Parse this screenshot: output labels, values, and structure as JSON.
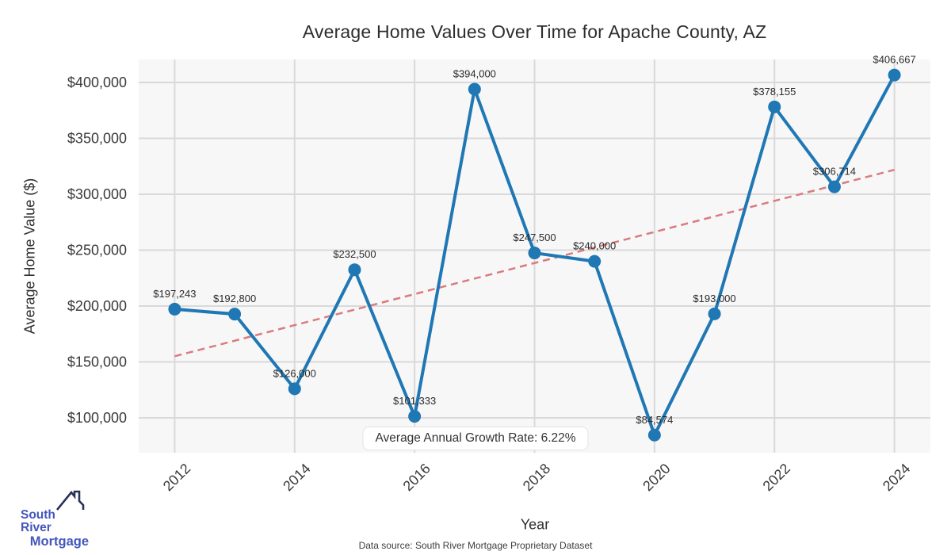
{
  "chart_data": {
    "type": "line",
    "title": "Average Home Values Over Time for Apache County, AZ",
    "xlabel": "Year",
    "ylabel": "Average Home Value ($)",
    "x": [
      2012,
      2013,
      2014,
      2015,
      2016,
      2017,
      2018,
      2019,
      2020,
      2021,
      2022,
      2023,
      2024
    ],
    "values": [
      197243,
      192800,
      126000,
      232500,
      101333,
      394000,
      247500,
      240000,
      84574,
      193000,
      378155,
      306714,
      406667
    ],
    "point_labels": [
      "$197,243",
      "$192,800",
      "$126,000",
      "$232,500",
      "$101,333",
      "$394,000",
      "$247,500",
      "$240,000",
      "$84,574",
      "$193,000",
      "$378,155",
      "$306,714",
      "$406,667"
    ],
    "x_tick_values": [
      2012,
      2014,
      2016,
      2018,
      2020,
      2022,
      2024
    ],
    "x_tick_labels": [
      "2012",
      "2014",
      "2016",
      "2018",
      "2020",
      "2022",
      "2024"
    ],
    "y_tick_values": [
      100000,
      150000,
      200000,
      250000,
      300000,
      350000,
      400000
    ],
    "y_tick_labels": [
      "$100,000",
      "$150,000",
      "$200,000",
      "$250,000",
      "$300,000",
      "$350,000",
      "$400,000"
    ],
    "xlim": [
      2011.4,
      2024.6
    ],
    "ylim": [
      68800,
      420600
    ],
    "grid": true,
    "legend": "none",
    "line_color": "#1f77b4",
    "marker": "circle",
    "plot_bg": "#f7f7f7",
    "grid_color": "#d9d9d9",
    "trendline": {
      "x": [
        2012,
        2024
      ],
      "y": [
        155100,
        321900
      ],
      "style": "dashed",
      "color": "#d97b7f"
    },
    "annotation": "Average Annual Growth Rate: 6.22%"
  },
  "branding": {
    "logo_line1": "South River",
    "logo_line2": "Mortgage",
    "logo_text_color": "#4356bb",
    "logo_icon_color": "#2a3157"
  },
  "footer": {
    "text": "Data source: South River Mortgage Proprietary Dataset"
  }
}
